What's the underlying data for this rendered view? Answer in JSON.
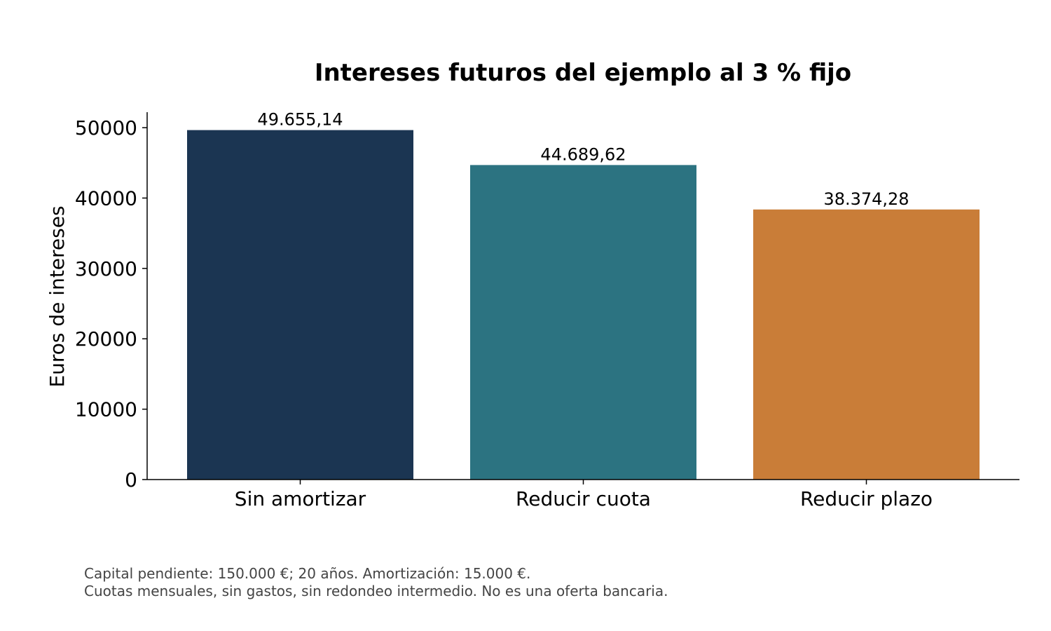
{
  "chart_data": {
    "type": "bar",
    "title": "Intereses futuros del ejemplo al 3 % fijo",
    "xlabel": "",
    "ylabel": "Euros de intereses",
    "categories": [
      "Sin amortizar",
      "Reducir cuota",
      "Reducir plazo"
    ],
    "values": [
      49655.14,
      44689.62,
      38374.28
    ],
    "value_labels": [
      "49.655,14",
      "44.689,62",
      "38.374,28"
    ],
    "colors": [
      "#1b3552",
      "#2c7381",
      "#c97d38"
    ],
    "ylim": [
      0,
      52200
    ],
    "yticks": [
      0,
      10000,
      20000,
      30000,
      40000,
      50000
    ],
    "ytick_labels": [
      "0",
      "10000",
      "20000",
      "30000",
      "40000",
      "50000"
    ],
    "grid": false,
    "legend": "none"
  },
  "notes": [
    "Capital pendiente: 150.000 €; 20 años. Amortización: 15.000 €.",
    "Cuotas mensuales, sin gastos, sin redondeo intermedio. No es una oferta bancaria."
  ]
}
